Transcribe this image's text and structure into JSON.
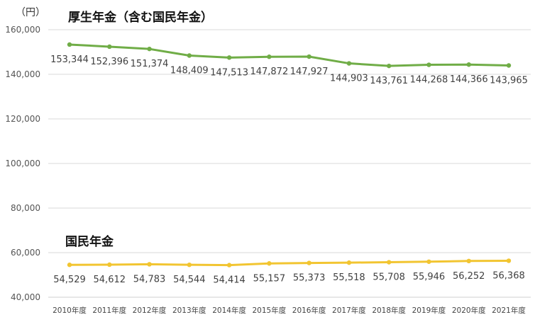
{
  "chart_data": {
    "type": "line",
    "unit_label": "（円）",
    "categories": [
      "2010年度",
      "2011年度",
      "2012年度",
      "2013年度",
      "2014年度",
      "2015年度",
      "2016年度",
      "2017年度",
      "2018年度",
      "2019年度",
      "2020年度",
      "2021年度"
    ],
    "ylim": [
      40000,
      160000
    ],
    "yticks": [
      40000,
      60000,
      80000,
      100000,
      120000,
      140000,
      160000
    ],
    "ytick_labels": [
      "40,000",
      "60,000",
      "80,000",
      "100,000",
      "120,000",
      "140,000",
      "160,000"
    ],
    "grid": true,
    "series": [
      {
        "name": "厚生年金（含む国民年金）",
        "color": "#70ad47",
        "values": [
          153344,
          152396,
          151374,
          148409,
          147513,
          147872,
          147927,
          144903,
          143761,
          144268,
          144366,
          143965
        ],
        "labels": [
          "153,344",
          "152,396",
          "151,374",
          "148,409",
          "147,513",
          "147,872",
          "147,927",
          "144,903",
          "143,761",
          "144,268",
          "144,366",
          "143,965"
        ]
      },
      {
        "name": "国民年金",
        "color": "#f2c531",
        "values": [
          54529,
          54612,
          54783,
          54544,
          54414,
          55157,
          55373,
          55518,
          55708,
          55946,
          56252,
          56368
        ],
        "labels": [
          "54,529",
          "54,612",
          "54,783",
          "54,544",
          "54,414",
          "55,157",
          "55,373",
          "55,518",
          "55,708",
          "55,946",
          "56,252",
          "56,368"
        ]
      }
    ]
  }
}
